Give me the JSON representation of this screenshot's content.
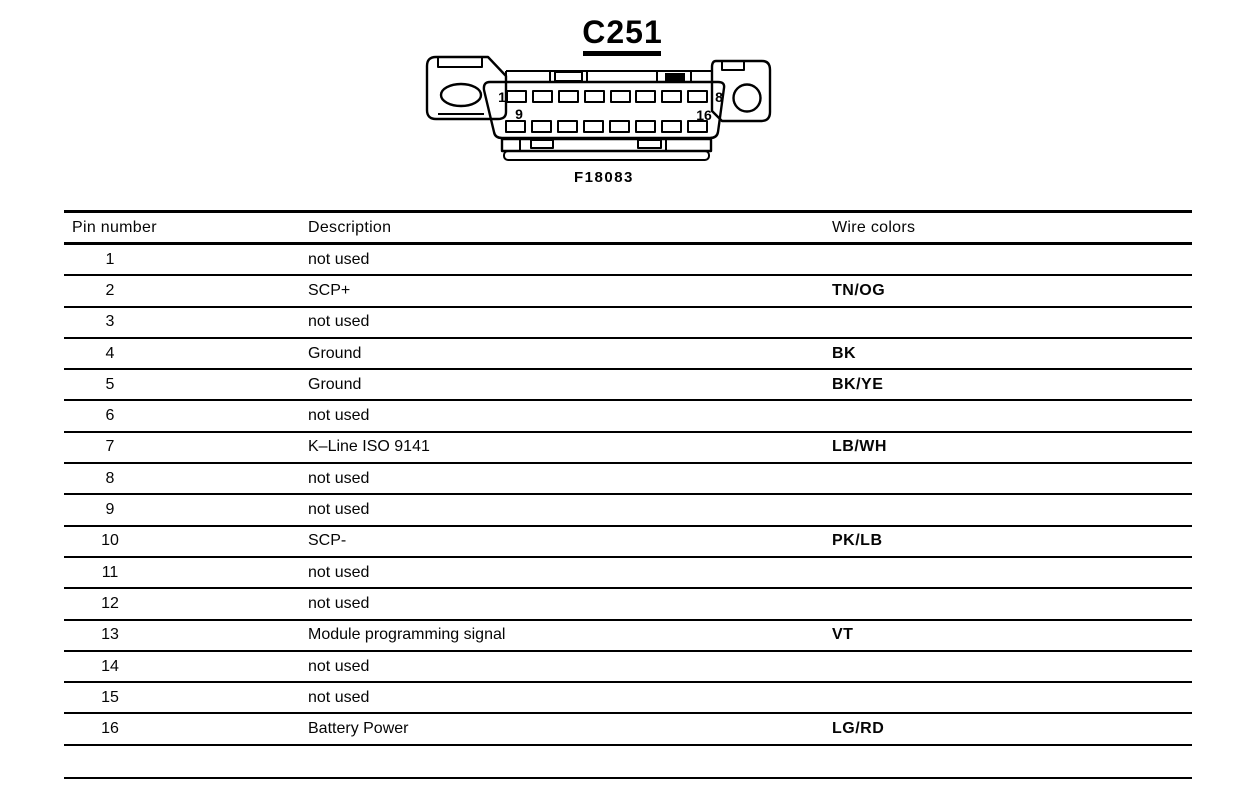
{
  "page": {
    "paper_color": "#ffffff",
    "ink_color": "#000000"
  },
  "connector": {
    "title": "C251",
    "figure_label": "F18083",
    "pin_labels": {
      "top_left": "1",
      "top_right": "8",
      "bottom_left": "9",
      "bottom_right": "16"
    }
  },
  "table": {
    "headers": {
      "pin": "Pin number",
      "description": "Description",
      "wire_colors": "Wire colors"
    },
    "rows": [
      {
        "pin": "1",
        "description": "not used",
        "wire_color": ""
      },
      {
        "pin": "2",
        "description": "SCP+",
        "wire_color": "TN/OG"
      },
      {
        "pin": "3",
        "description": "not used",
        "wire_color": ""
      },
      {
        "pin": "4",
        "description": "Ground",
        "wire_color": "BK"
      },
      {
        "pin": "5",
        "description": "Ground",
        "wire_color": "BK/YE"
      },
      {
        "pin": "6",
        "description": "not used",
        "wire_color": ""
      },
      {
        "pin": "7",
        "description": "K–Line ISO 9141",
        "wire_color": "LB/WH"
      },
      {
        "pin": "8",
        "description": "not used",
        "wire_color": ""
      },
      {
        "pin": "9",
        "description": "not used",
        "wire_color": ""
      },
      {
        "pin": "10",
        "description": "SCP-",
        "wire_color": "PK/LB"
      },
      {
        "pin": "11",
        "description": "not used",
        "wire_color": ""
      },
      {
        "pin": "12",
        "description": "not used",
        "wire_color": ""
      },
      {
        "pin": "13",
        "description": "Module programming signal",
        "wire_color": "VT"
      },
      {
        "pin": "14",
        "description": "not used",
        "wire_color": ""
      },
      {
        "pin": "15",
        "description": "not used",
        "wire_color": ""
      },
      {
        "pin": "16",
        "description": "Battery Power",
        "wire_color": "LG/RD"
      },
      {
        "pin": "",
        "description": "",
        "wire_color": ""
      }
    ]
  }
}
